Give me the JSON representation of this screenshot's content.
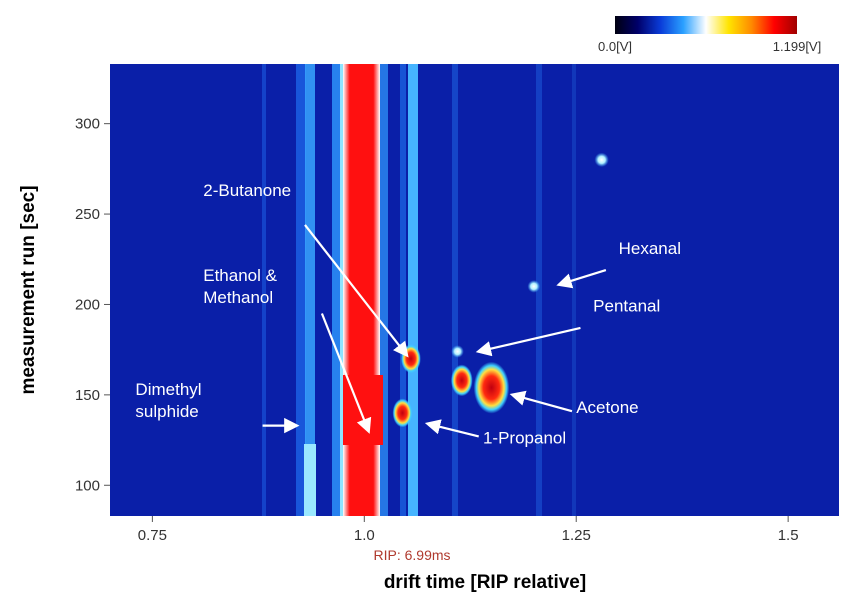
{
  "chart_data": {
    "type": "heatmap",
    "xlabel": "drift time [RIP relative]",
    "ylabel": "measurement run [sec]",
    "xlim": [
      0.7,
      1.56
    ],
    "ylim": [
      83,
      333
    ],
    "x_ticks": [
      0.75,
      1.0,
      1.25,
      1.5
    ],
    "x_tick_labels": [
      "0.75",
      "1.0",
      "1.25",
      "1.5"
    ],
    "y_ticks": [
      100,
      150,
      200,
      250,
      300
    ],
    "y_tick_labels": [
      "100",
      "150",
      "200",
      "250",
      "300"
    ],
    "rip_label": "RIP: 6.99ms",
    "colorbar": {
      "min_label": "0.0[V]",
      "max_label": "1.199[V]",
      "colors": [
        "#000010",
        "#00006a",
        "#0a3cd8",
        "#2aa0ff",
        "#ffffff",
        "#ffe400",
        "#ff8a00",
        "#ff0000",
        "#a00000"
      ]
    },
    "colors": {
      "background": "#0a1fa8",
      "rip": "#f50a0a",
      "peak_core": "#d8141b",
      "peak_glow": "#ffdd30",
      "band": "#40b8ff",
      "annotation": "#ffffff"
    },
    "peaks": [
      {
        "x": 1.055,
        "y": 170,
        "size": 1.0
      },
      {
        "x": 1.045,
        "y": 140,
        "size": 1.0
      },
      {
        "x": 1.115,
        "y": 158,
        "size": 1.1
      },
      {
        "x": 1.15,
        "y": 154,
        "size": 1.8
      },
      {
        "x": 1.28,
        "y": 280,
        "size": 0.8
      },
      {
        "x": 1.2,
        "y": 210,
        "size": 0.7
      },
      {
        "x": 1.11,
        "y": 174,
        "size": 0.7
      }
    ],
    "annotations": [
      {
        "lines": [
          "2-Butanone"
        ],
        "x": 0.81,
        "y": 260
      },
      {
        "lines": [
          "Ethanol &",
          "Methanol"
        ],
        "x": 0.81,
        "y": 213
      },
      {
        "lines": [
          "Dimethyl",
          "sulphide"
        ],
        "x": 0.73,
        "y": 150
      },
      {
        "lines": [
          "Hexanal"
        ],
        "x": 1.3,
        "y": 228
      },
      {
        "lines": [
          "Pentanal"
        ],
        "x": 1.27,
        "y": 196
      },
      {
        "lines": [
          "Acetone"
        ],
        "x": 1.25,
        "y": 140
      },
      {
        "lines": [
          "1-Propanol"
        ],
        "x": 1.14,
        "y": 123
      }
    ],
    "arrows": [
      {
        "from": [
          0.93,
          244
        ],
        "to": [
          1.05,
          172
        ]
      },
      {
        "from": [
          0.95,
          195
        ],
        "to": [
          1.005,
          130
        ]
      },
      {
        "from": [
          0.88,
          133
        ],
        "to": [
          0.92,
          133
        ]
      },
      {
        "from": [
          1.285,
          219
        ],
        "to": [
          1.23,
          211
        ]
      },
      {
        "from": [
          1.255,
          187
        ],
        "to": [
          1.135,
          174
        ]
      },
      {
        "from": [
          1.245,
          141
        ],
        "to": [
          1.175,
          150
        ]
      },
      {
        "from": [
          1.135,
          127
        ],
        "to": [
          1.075,
          134
        ]
      }
    ]
  }
}
